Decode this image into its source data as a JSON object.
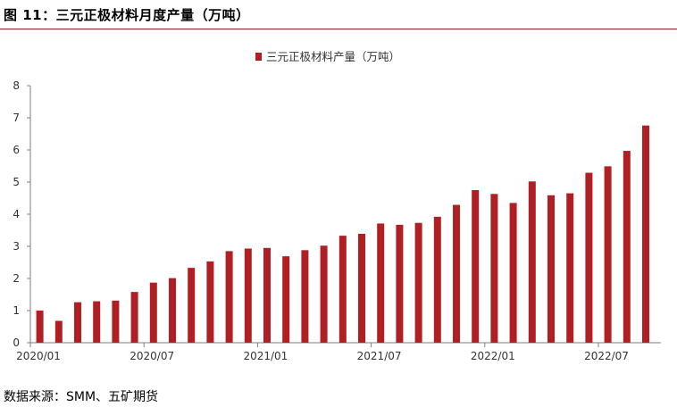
{
  "figure": {
    "title": "图 11：三元正极材料月度产量（万吨）",
    "source": "数据来源：SMM、五矿期货"
  },
  "chart_data": {
    "type": "bar",
    "series": [
      {
        "name": "三元正极材料产量（万吨）",
        "color": "#b01f24",
        "values": [
          1.0,
          0.68,
          1.26,
          1.29,
          1.31,
          1.58,
          1.87,
          2.01,
          2.33,
          2.53,
          2.85,
          2.93,
          2.95,
          2.69,
          2.88,
          3.02,
          3.33,
          3.39,
          3.71,
          3.67,
          3.73,
          3.92,
          4.29,
          4.75,
          4.63,
          4.35,
          5.02,
          4.59,
          4.65,
          5.29,
          5.49,
          5.97,
          6.76
        ]
      }
    ],
    "categories": [
      "2020/01",
      "2020/02",
      "2020/03",
      "2020/04",
      "2020/05",
      "2020/06",
      "2020/07",
      "2020/08",
      "2020/09",
      "2020/10",
      "2020/11",
      "2020/12",
      "2021/01",
      "2021/02",
      "2021/03",
      "2021/04",
      "2021/05",
      "2021/06",
      "2021/07",
      "2021/08",
      "2021/09",
      "2021/10",
      "2021/11",
      "2021/12",
      "2022/01",
      "2022/02",
      "2022/03",
      "2022/04",
      "2022/05",
      "2022/06",
      "2022/07",
      "2022/08",
      "2022/09"
    ],
    "x_tick_labels": [
      "2020/01",
      "2020/07",
      "2021/01",
      "2021/07",
      "2022/01",
      "2022/07"
    ],
    "x_tick_every": 6,
    "ylim": [
      0,
      8
    ],
    "y_ticks": [
      0,
      1,
      2,
      3,
      4,
      5,
      6,
      7,
      8
    ],
    "grid": false,
    "legend": "top-center",
    "axis_color": "#7f7f7f"
  }
}
